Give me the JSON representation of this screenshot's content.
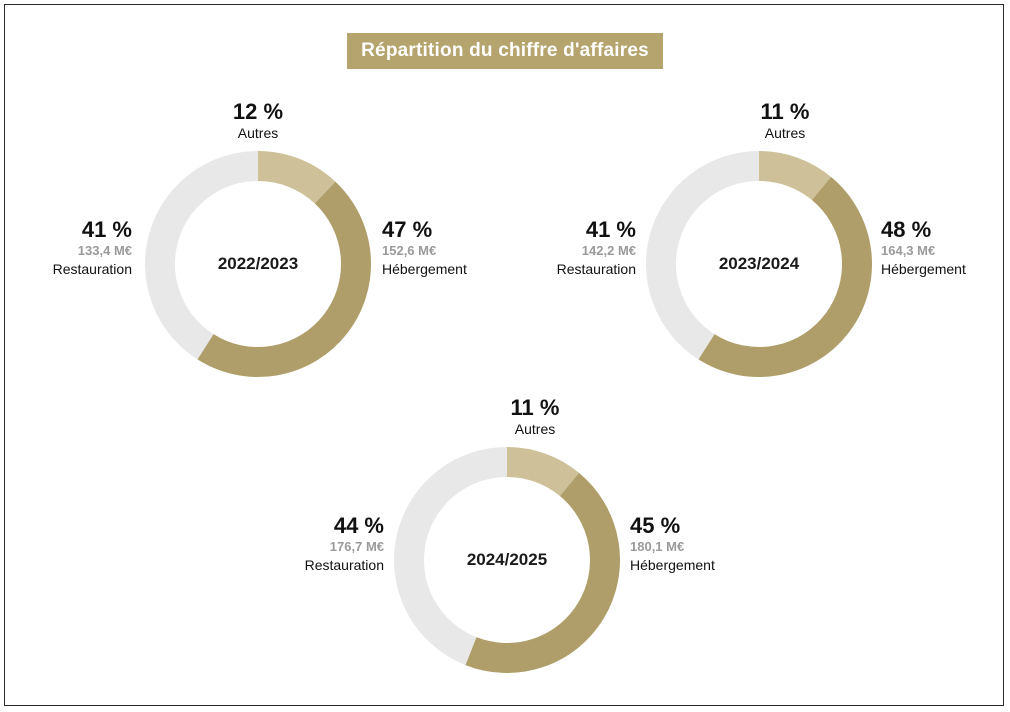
{
  "title": "Répartition du chiffre d'affaires",
  "colors": {
    "hebergement": "#b09e6a",
    "autres": "#cec098",
    "restauration": "#e8e8e8",
    "title_background": "#b5a46d"
  },
  "chart_data": [
    {
      "type": "pie",
      "center_label": "2022/2023",
      "slices": [
        {
          "name": "Autres",
          "percent": 12,
          "percent_label": "12 %",
          "amount": ""
        },
        {
          "name": "Hébergement",
          "percent": 47,
          "percent_label": "47 %",
          "amount": "152,6 M€"
        },
        {
          "name": "Restauration",
          "percent": 41,
          "percent_label": "41 %",
          "amount": "133,4 M€"
        }
      ]
    },
    {
      "type": "pie",
      "center_label": "2023/2024",
      "slices": [
        {
          "name": "Autres",
          "percent": 11,
          "percent_label": "11 %",
          "amount": ""
        },
        {
          "name": "Hébergement",
          "percent": 48,
          "percent_label": "48 %",
          "amount": "164,3 M€"
        },
        {
          "name": "Restauration",
          "percent": 41,
          "percent_label": "41 %",
          "amount": "142,2 M€"
        }
      ]
    },
    {
      "type": "pie",
      "center_label": "2024/2025",
      "slices": [
        {
          "name": "Autres",
          "percent": 11,
          "percent_label": "11 %",
          "amount": ""
        },
        {
          "name": "Hébergement",
          "percent": 45,
          "percent_label": "45 %",
          "amount": "180,1 M€"
        },
        {
          "name": "Restauration",
          "percent": 44,
          "percent_label": "44 %",
          "amount": "176,7 M€"
        }
      ]
    }
  ]
}
